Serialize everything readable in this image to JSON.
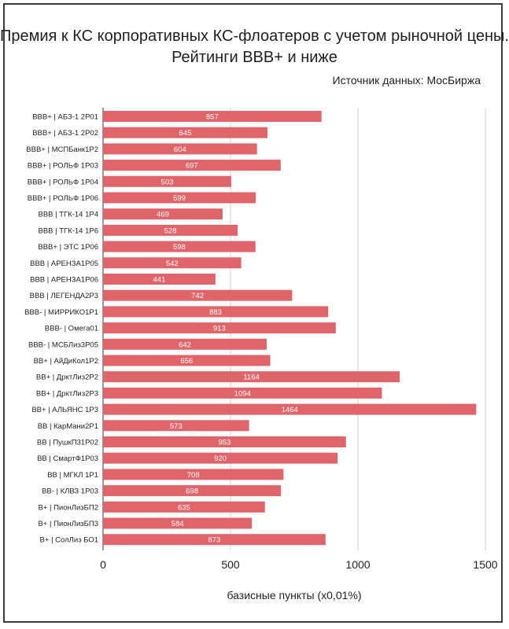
{
  "chart_data": {
    "type": "bar",
    "orientation": "horizontal",
    "title": "Премия к КС корпоративных КС-флоатеров с учетом рыночной цены. Рейтинги BBB+ и ниже",
    "source": "Источник данных: МосБиржа",
    "xlabel": "базисные пункты (x0,01%)",
    "ylabel": "",
    "xlim": [
      0,
      1500
    ],
    "xticks": [
      0,
      500,
      1000,
      1500
    ],
    "grid": true,
    "bar_color": "#e0656b",
    "categories": [
      "BBB+ | АБЗ-1 2Р01",
      "BBB+ | АБЗ-1 2Р02",
      "BBB+ | МСПБанк1Р2",
      "BBB+ | РОЛЬФ 1Р03",
      "BBB+ | РОЛЬФ 1Р04",
      "BBB+ | РОЛЬФ 1Р06",
      "BBB | ТГК-14 1Р4",
      "BBB | ТГК-14 1Р6",
      "BBB+ | ЭТС 1Р06",
      "BBB | АРЕНЗА1Р05",
      "BBB | АРЕНЗА1Р06",
      "BBB | ЛЕГЕНДА2Р3",
      "BBB- | МИРРИКО1Р1",
      "BBB- | Омега01",
      "BBB- | МСБЛиз3Р05",
      "BB+ | АйДиКол1Р2",
      "BB+ | ДрктЛиз2Р2",
      "BB+ | ДрктЛиз2Р3",
      "BB+ | АЛЬЯНС 1Р3",
      "BB | КарМани2Р1",
      "BB | ПушкП31Р02",
      "BB | СмартФ1Р03",
      "BB | МГКЛ 1Р1",
      "BB- | КЛВЗ 1Р03",
      "B+ | ПионЛизБП2",
      "B+ | ПионЛизБП3",
      "B+ | СолЛиз БО1"
    ],
    "values": [
      857,
      645,
      604,
      697,
      503,
      599,
      469,
      528,
      598,
      542,
      441,
      742,
      883,
      913,
      642,
      656,
      1164,
      1094,
      1464,
      573,
      953,
      920,
      708,
      698,
      635,
      584,
      873
    ]
  }
}
